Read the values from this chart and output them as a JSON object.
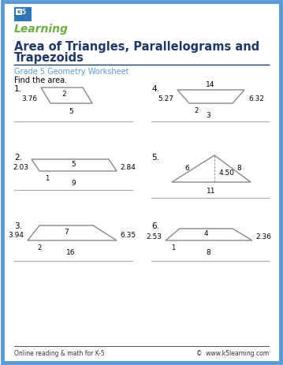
{
  "title_line1": "Area of Triangles, Parallelograms and",
  "title_line2": "Trapezoids",
  "subtitle": "Grade 5 Geometry Worksheet",
  "instruction": "Find the area.",
  "border_color": "#5b9bd5",
  "title_color": "#1f3864",
  "subtitle_color": "#5b9bd5",
  "shape_color": "#888888",
  "footer_left": "Online reading & math for K-5",
  "footer_right": "©  www.k5learning.com",
  "bg_color": "#ffffff"
}
